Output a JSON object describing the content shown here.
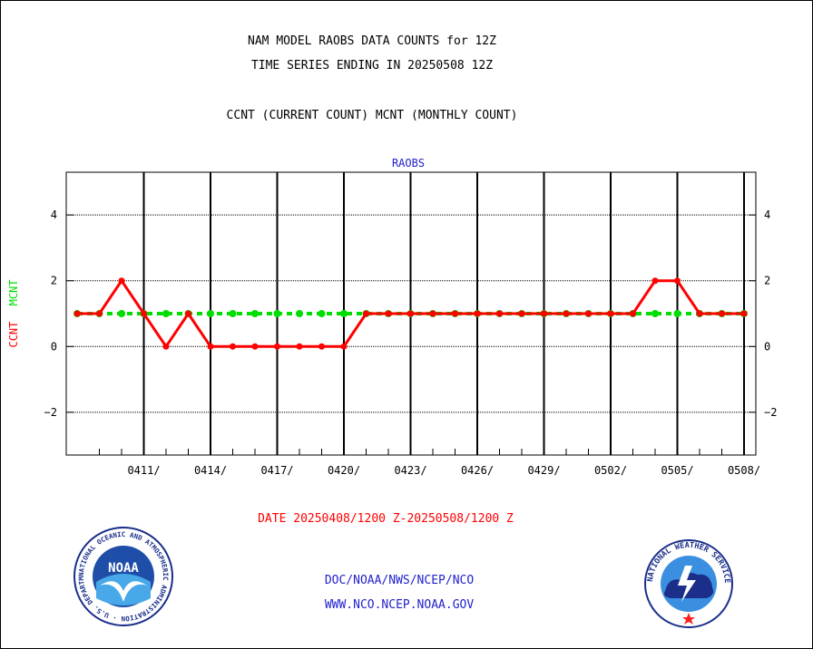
{
  "header": {
    "line1": "NAM MODEL RAOBS DATA COUNTS for 12Z",
    "line2": "TIME SERIES ENDING IN 20250508 12Z",
    "line3": "CCNT (CURRENT COUNT) MCNT (MONTHLY COUNT)"
  },
  "footer": {
    "date_range": "DATE 20250408/1200 Z-20250508/1200 Z",
    "org_line": "DOC/NOAA/NWS/NCEP/NCO",
    "url_line": "WWW.NCO.NCEP.NOAA.GOV"
  },
  "logos": {
    "left": {
      "name": "noaa-logo",
      "text": "NOAA",
      "ring_text": "NATIONAL OCEANIC AND ATMOSPHERIC ADMINISTRATION · U.S. DEPARTMENT OF COMMERCE"
    },
    "right": {
      "name": "nws-logo",
      "ring_text": "NATIONAL WEATHER SERVICE"
    }
  },
  "chart_data": {
    "type": "line",
    "panel_title": "RAOBS",
    "ylabel_parts": [
      {
        "text": "CCNT",
        "color": "#ff0000"
      },
      {
        "text": "MCNT",
        "color": "#00dd00"
      }
    ],
    "ylim": [
      -3.3,
      5.3
    ],
    "yticks": [
      -2,
      0,
      2,
      4
    ],
    "ytick_labels": [
      "−2",
      "0",
      "2",
      "4"
    ],
    "x_start": "2025-04-08",
    "x_end": "2025-05-08",
    "xtick_dates": [
      "2025-04-11",
      "2025-04-14",
      "2025-04-17",
      "2025-04-20",
      "2025-04-23",
      "2025-04-26",
      "2025-04-29",
      "2025-05-02",
      "2025-05-05",
      "2025-05-08"
    ],
    "xtick_labels": [
      "0411/",
      "0414/",
      "0417/",
      "0420/",
      "0423/",
      "0426/",
      "0429/",
      "0502/",
      "0505/",
      "0508/"
    ],
    "grid": true,
    "series": [
      {
        "name": "CCNT",
        "color": "#ff0000",
        "values": [
          1,
          1,
          2,
          1,
          0,
          1,
          0,
          0,
          0,
          0,
          0,
          0,
          0,
          1,
          1,
          1,
          1,
          1,
          1,
          1,
          1,
          1,
          1,
          1,
          1,
          1,
          2,
          2,
          1,
          1,
          1
        ]
      },
      {
        "name": "MCNT",
        "color": "#00dd00",
        "values": [
          1,
          1,
          1,
          1,
          1,
          1,
          1,
          1,
          1,
          1,
          1,
          1,
          1,
          1,
          1,
          1,
          1,
          1,
          1,
          1,
          1,
          1,
          1,
          1,
          1,
          1,
          1,
          1,
          1,
          1,
          1
        ]
      }
    ]
  }
}
